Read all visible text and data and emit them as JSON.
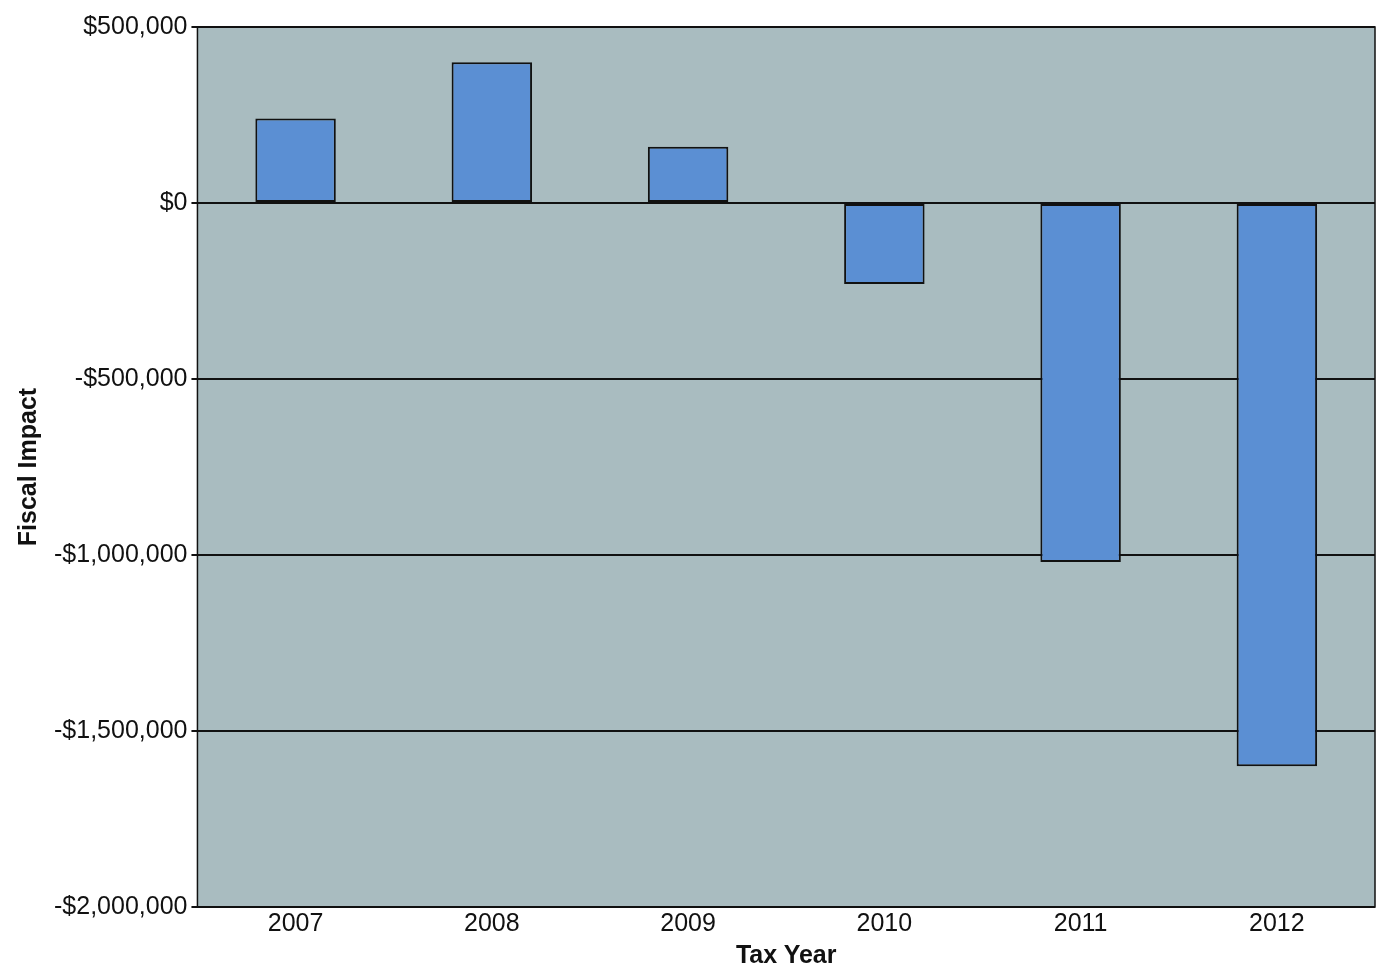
{
  "chart_data": {
    "type": "bar",
    "xlabel": "Tax Year",
    "ylabel": "Fiscal Impact",
    "categories": [
      "2007",
      "2008",
      "2009",
      "2010",
      "2011",
      "2012"
    ],
    "values": [
      240000,
      400000,
      160000,
      -230000,
      -1020000,
      -1600000
    ],
    "color": "#5b8fd3",
    "ylim": [
      -2000000,
      500000
    ],
    "yticks": [
      {
        "value": 500000,
        "label": "$500,000"
      },
      {
        "value": 0,
        "label": "$0"
      },
      {
        "value": -500000,
        "label": "-$500,000"
      },
      {
        "value": -1000000,
        "label": "-$1,000,000"
      },
      {
        "value": -1500000,
        "label": "-$1,500,000"
      },
      {
        "value": -2000000,
        "label": "-$2,000,000"
      }
    ],
    "grid": "y",
    "legend": false
  }
}
